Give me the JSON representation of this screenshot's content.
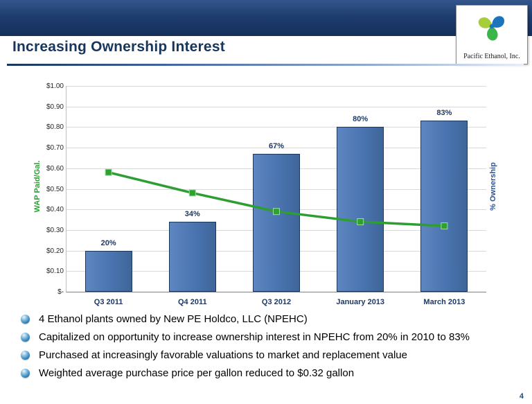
{
  "slide": {
    "title": "Increasing Ownership Interest",
    "page_number": "4",
    "logo": {
      "company": "Pacific Ethanol, Inc.",
      "icon": "pacific-ethanol-swirl-logo"
    },
    "bullets": [
      "4 Ethanol plants owned by New PE Holdco, LLC (NPEHC)",
      "Capitalized on opportunity to increase ownership interest in NPEHC from 20% in 2010 to 83%",
      "Purchased at increasingly favorable valuations to market and replacement value",
      "Weighted average purchase price per gallon reduced to $0.32 gallon"
    ]
  },
  "chart_data": {
    "type": "combo",
    "categories": [
      "Q3 2011",
      "Q4 2011",
      "Q3 2012",
      "January 2013",
      "March 2013"
    ],
    "series": [
      {
        "name": "% Ownership",
        "type": "bar",
        "axis": "right",
        "values": [
          20,
          34,
          67,
          80,
          83
        ],
        "data_labels": [
          "20%",
          "34%",
          "67%",
          "80%",
          "83%"
        ],
        "color": "#4A74B0"
      },
      {
        "name": "WAP Paid/Gal.",
        "type": "line",
        "axis": "left",
        "values": [
          0.58,
          0.48,
          0.39,
          0.34,
          0.32
        ],
        "color": "#2E9E33"
      }
    ],
    "left_axis": {
      "title": "WAP Paid/Gal.",
      "min": 0,
      "max": 1.0,
      "ticks": [
        "$1.00",
        "$0.90",
        "$0.80",
        "$0.70",
        "$0.60",
        "$0.50",
        "$0.40",
        "$0.30",
        "$0.20",
        "$0.10",
        "$-"
      ]
    },
    "right_axis": {
      "title": "% Ownership",
      "min": 0,
      "max": 100
    },
    "grid": true,
    "legend": "none",
    "colors": {
      "bar_border": "#17375E",
      "data_label": "#1F3864",
      "grid": "#D9D9D9",
      "marker": "#2FA12F"
    }
  }
}
